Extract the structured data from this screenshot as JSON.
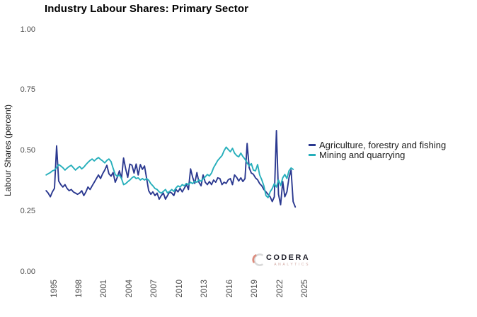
{
  "branding": {
    "logo_text": "CODERA",
    "logo_subtext": "ANALYTICS"
  },
  "chart_data": {
    "type": "line",
    "title": "Industry Labour Shares: Primary Sector",
    "xlabel": "",
    "ylabel": "Labour Shares (percent)",
    "ylim": [
      0.0,
      1.0
    ],
    "xlim": [
      1993.5,
      2025.5
    ],
    "grid": false,
    "legend_position": "right",
    "y_ticks": [
      "0.00",
      "0.25",
      "0.50",
      "0.75",
      "1.00"
    ],
    "x_ticks": [
      "1995",
      "1998",
      "2001",
      "2004",
      "2007",
      "2010",
      "2013",
      "2016",
      "2019",
      "2022",
      "2025"
    ],
    "x_unit": "year (quarterly observations)",
    "series": [
      {
        "name": "Agriculture, forestry and fishing",
        "color": "#2b3990",
        "x_start": 1994.0,
        "x_step": 0.25,
        "values": [
          0.335,
          0.325,
          0.31,
          0.33,
          0.345,
          0.52,
          0.375,
          0.36,
          0.35,
          0.36,
          0.345,
          0.335,
          0.34,
          0.33,
          0.325,
          0.32,
          0.325,
          0.335,
          0.315,
          0.33,
          0.35,
          0.34,
          0.355,
          0.37,
          0.385,
          0.4,
          0.385,
          0.405,
          0.42,
          0.44,
          0.405,
          0.395,
          0.41,
          0.37,
          0.39,
          0.417,
          0.385,
          0.47,
          0.425,
          0.39,
          0.445,
          0.44,
          0.408,
          0.445,
          0.4,
          0.443,
          0.423,
          0.437,
          0.385,
          0.335,
          0.32,
          0.33,
          0.315,
          0.325,
          0.3,
          0.315,
          0.325,
          0.3,
          0.315,
          0.33,
          0.325,
          0.315,
          0.34,
          0.33,
          0.345,
          0.33,
          0.345,
          0.36,
          0.34,
          0.425,
          0.39,
          0.365,
          0.41,
          0.37,
          0.355,
          0.4,
          0.37,
          0.36,
          0.373,
          0.36,
          0.379,
          0.37,
          0.388,
          0.385,
          0.36,
          0.37,
          0.365,
          0.38,
          0.385,
          0.36,
          0.4,
          0.39,
          0.375,
          0.388,
          0.373,
          0.385,
          0.53,
          0.43,
          0.408,
          0.403,
          0.388,
          0.38,
          0.364,
          0.355,
          0.34,
          0.33,
          0.32,
          0.31,
          0.29,
          0.31,
          0.583,
          0.32,
          0.277,
          0.373,
          0.31,
          0.33,
          0.388,
          0.42,
          0.29,
          0.268
        ]
      },
      {
        "name": "Mining and quarrying",
        "color": "#27afbb",
        "x_start": 1994.0,
        "x_step": 0.25,
        "values": [
          0.4,
          0.405,
          0.41,
          0.417,
          0.42,
          0.43,
          0.443,
          0.437,
          0.43,
          0.42,
          0.428,
          0.435,
          0.44,
          0.43,
          0.42,
          0.428,
          0.435,
          0.425,
          0.432,
          0.443,
          0.452,
          0.46,
          0.466,
          0.458,
          0.466,
          0.472,
          0.464,
          0.458,
          0.45,
          0.46,
          0.466,
          0.455,
          0.428,
          0.402,
          0.394,
          0.4,
          0.385,
          0.36,
          0.364,
          0.372,
          0.379,
          0.388,
          0.394,
          0.385,
          0.388,
          0.379,
          0.385,
          0.379,
          0.385,
          0.378,
          0.364,
          0.355,
          0.344,
          0.34,
          0.33,
          0.325,
          0.332,
          0.34,
          0.326,
          0.332,
          0.34,
          0.332,
          0.346,
          0.355,
          0.35,
          0.36,
          0.355,
          0.365,
          0.36,
          0.37,
          0.364,
          0.374,
          0.37,
          0.38,
          0.374,
          0.384,
          0.392,
          0.402,
          0.396,
          0.408,
          0.43,
          0.445,
          0.46,
          0.47,
          0.48,
          0.5,
          0.515,
          0.505,
          0.496,
          0.51,
          0.49,
          0.48,
          0.475,
          0.49,
          0.476,
          0.465,
          0.45,
          0.437,
          0.447,
          0.42,
          0.417,
          0.443,
          0.4,
          0.38,
          0.355,
          0.315,
          0.306,
          0.33,
          0.344,
          0.364,
          0.35,
          0.379,
          0.356,
          0.388,
          0.402,
          0.385,
          0.417,
          0.429,
          0.423
        ]
      }
    ]
  }
}
